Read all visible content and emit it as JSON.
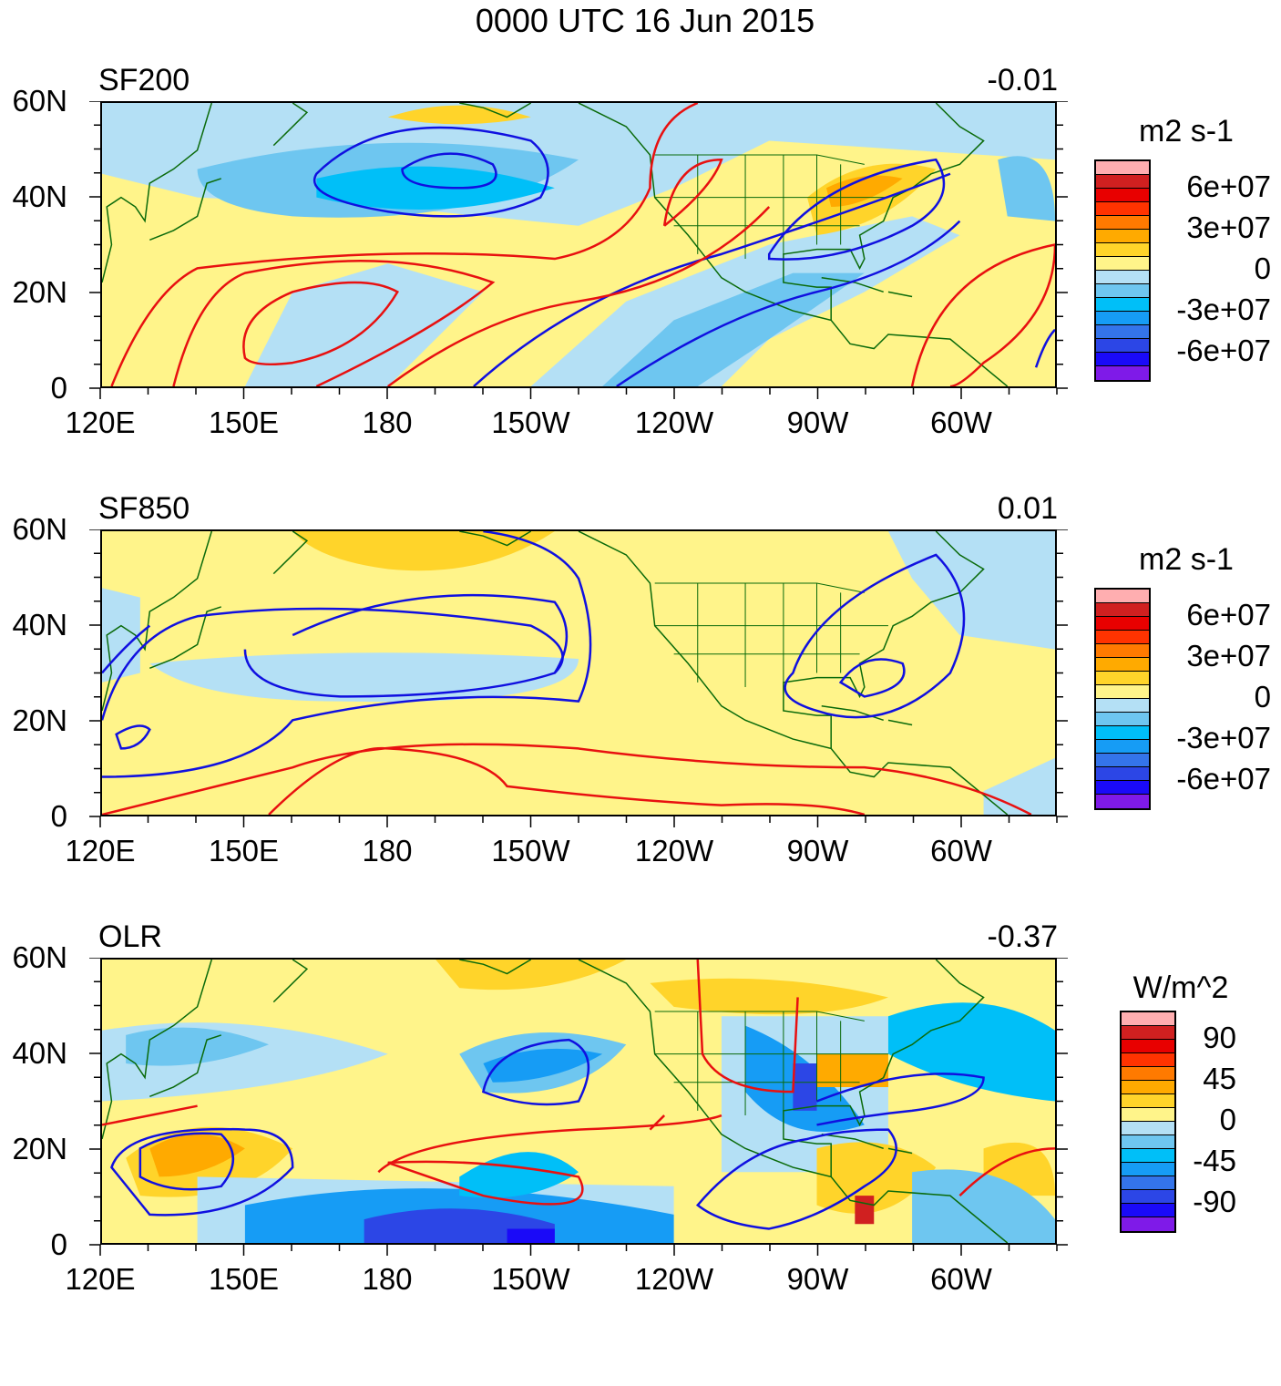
{
  "title": "0000 UTC 16 Jun 2015",
  "x_ticks": [
    "120E",
    "150E",
    "180",
    "150W",
    "120W",
    "90W",
    "60W"
  ],
  "y_ticks": [
    "60N",
    "40N",
    "20N",
    "0"
  ],
  "colorbar_colors": [
    "#ffaeb0",
    "#d02020",
    "#e80000",
    "#ff3300",
    "#ff7a00",
    "#ffaa00",
    "#ffd42a",
    "#fff48a",
    "#b4e0f5",
    "#6ec6f0",
    "#00bff8",
    "#169cf5",
    "#3474ea",
    "#2c46e6",
    "#1a0af8",
    "#7f1ae8"
  ],
  "panels": [
    {
      "label": "SF200",
      "value": "-0.01",
      "unit": "m2 s-1",
      "cb_labels": [
        "6e+07",
        "3e+07",
        "0",
        "-3e+07",
        "-6e+07"
      ]
    },
    {
      "label": "SF850",
      "value": "0.01",
      "unit": "m2 s-1",
      "cb_labels": [
        "6e+07",
        "3e+07",
        "0",
        "-3e+07",
        "-6e+07"
      ]
    },
    {
      "label": "OLR",
      "value": "-0.37",
      "unit": "W/m^2",
      "cb_labels": [
        "90",
        "45",
        "0",
        "-45",
        "-90"
      ]
    }
  ],
  "colors": {
    "positive_contour": "#e81010",
    "negative_contour": "#1010e0",
    "coastline": "#0a6a0a"
  }
}
